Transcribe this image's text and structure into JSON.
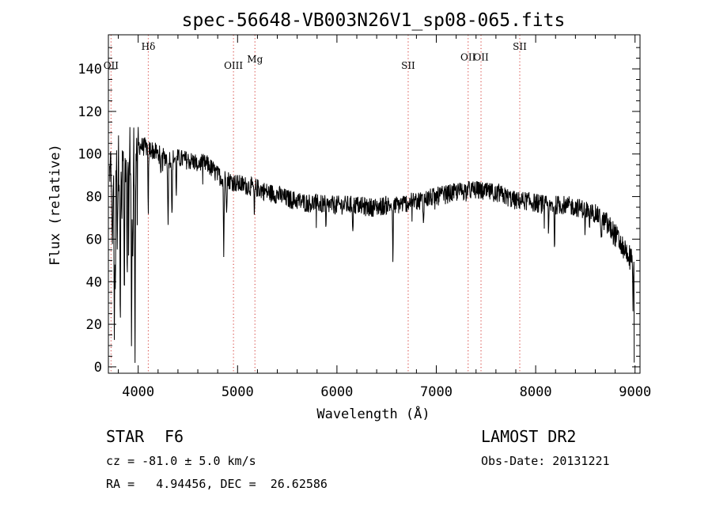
{
  "chart_data": {
    "type": "line",
    "title": "spec-56648-VB003N26V1_sp08-065.fits",
    "xlabel": "Wavelength (Å)",
    "ylabel": "Flux (relative)",
    "xlim": [
      3700,
      9050
    ],
    "ylim": [
      -3,
      156
    ],
    "xticks": [
      4000,
      5000,
      6000,
      7000,
      8000,
      9000
    ],
    "yticks": [
      0,
      20,
      40,
      60,
      80,
      100,
      120,
      140
    ],
    "line_color": "#000000",
    "marker_line_color": "#d9534f",
    "lines": [
      {
        "label": "OII",
        "x": 3727,
        "label_y": 140
      },
      {
        "label": "Hδ",
        "x": 4102,
        "label_y": 149
      },
      {
        "label": "OIII",
        "x": 4959,
        "label_y": 140
      },
      {
        "label": "Mg",
        "x": 5175,
        "label_y": 143
      },
      {
        "label": "SII",
        "x": 6717,
        "label_y": 140
      },
      {
        "label": "OII",
        "x": 7320,
        "label_y": 144
      },
      {
        "label": "OII",
        "x": 7450,
        "label_y": 144
      },
      {
        "label": "SII",
        "x": 7840,
        "label_y": 149
      }
    ],
    "continuum": [
      [
        3720,
        90
      ],
      [
        3800,
        96
      ],
      [
        3900,
        100
      ],
      [
        4000,
        104
      ],
      [
        4100,
        103
      ],
      [
        4200,
        100
      ],
      [
        4300,
        98
      ],
      [
        4400,
        98
      ],
      [
        4500,
        97
      ],
      [
        4600,
        96
      ],
      [
        4700,
        95
      ],
      [
        4800,
        90
      ],
      [
        4900,
        88
      ],
      [
        5000,
        86
      ],
      [
        5100,
        85
      ],
      [
        5200,
        84
      ],
      [
        5300,
        82
      ],
      [
        5400,
        81
      ],
      [
        5500,
        79
      ],
      [
        5600,
        78
      ],
      [
        5700,
        77
      ],
      [
        5800,
        77
      ],
      [
        5900,
        76
      ],
      [
        6000,
        76
      ],
      [
        6100,
        76
      ],
      [
        6200,
        76
      ],
      [
        6300,
        75
      ],
      [
        6400,
        75
      ],
      [
        6500,
        76
      ],
      [
        6600,
        76
      ],
      [
        6700,
        77
      ],
      [
        6800,
        78
      ],
      [
        6900,
        79
      ],
      [
        7000,
        80
      ],
      [
        7100,
        81
      ],
      [
        7200,
        82
      ],
      [
        7300,
        83
      ],
      [
        7400,
        83
      ],
      [
        7500,
        82
      ],
      [
        7600,
        82
      ],
      [
        7700,
        80
      ],
      [
        7800,
        78
      ],
      [
        7900,
        78
      ],
      [
        8000,
        77
      ],
      [
        8100,
        76
      ],
      [
        8200,
        76
      ],
      [
        8300,
        76
      ],
      [
        8400,
        75
      ],
      [
        8500,
        74
      ],
      [
        8600,
        72
      ],
      [
        8700,
        68
      ],
      [
        8800,
        62
      ],
      [
        8850,
        58
      ],
      [
        8900,
        55
      ],
      [
        8950,
        52
      ],
      [
        8980,
        50
      ]
    ],
    "absorption_features": [
      [
        3740,
        45
      ],
      [
        3760,
        70
      ],
      [
        3770,
        55
      ],
      [
        3790,
        30
      ],
      [
        3820,
        75
      ],
      [
        3835,
        25
      ],
      [
        3860,
        65
      ],
      [
        3889,
        50
      ],
      [
        3905,
        35
      ],
      [
        3933,
        88
      ],
      [
        3945,
        60
      ],
      [
        3968,
        90
      ],
      [
        3990,
        30
      ],
      [
        4101,
        30
      ],
      [
        4226,
        10
      ],
      [
        4300,
        32
      ],
      [
        4340,
        30
      ],
      [
        4383,
        15
      ],
      [
        4861,
        35
      ],
      [
        4890,
        12
      ],
      [
        5169,
        14
      ],
      [
        5890,
        12
      ],
      [
        6160,
        10
      ],
      [
        6563,
        25
      ],
      [
        6870,
        10
      ],
      [
        7600,
        8
      ],
      [
        8130,
        14
      ],
      [
        8190,
        18
      ],
      [
        8498,
        10
      ],
      [
        8542,
        12
      ],
      [
        8662,
        10
      ],
      [
        8980,
        20
      ]
    ],
    "noise_amplitude": 4.5,
    "spectrum_end_x": 8990,
    "spectrum_end_y": 2
  },
  "info": {
    "object_type": "STAR",
    "subclass": "F6",
    "survey": "LAMOST DR2",
    "redshift_line": "cz = -81.0 ± 5.0 km/s",
    "obs_date_line": "Obs-Date: 20131221",
    "coords_line": "RA =   4.94456, DEC =  26.62586"
  }
}
